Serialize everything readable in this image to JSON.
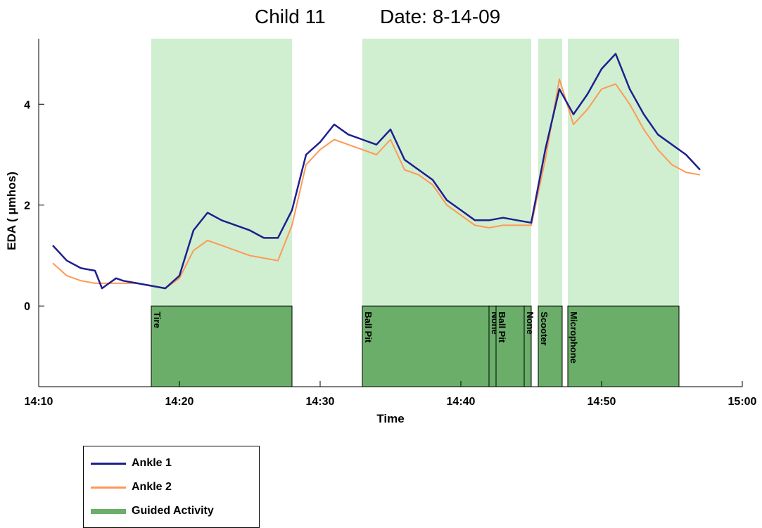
{
  "chart_data": {
    "type": "line",
    "title_left": "Child 11",
    "title_right": "Date: 8-14-09",
    "xlabel": "Time",
    "ylabel": "EDA ( μmhos)",
    "xlim": [
      "14:10",
      "15:00"
    ],
    "ylim": [
      -1.6,
      5.3
    ],
    "x_ticks": [
      "14:10",
      "14:20",
      "14:30",
      "14:40",
      "14:50",
      "15:00"
    ],
    "y_ticks": [
      0,
      2,
      4
    ],
    "legend_position": "below-left",
    "colors": {
      "ankle1": "#1f1f8f",
      "ankle2": "#ff9955",
      "shade": "#c8ecc8",
      "activity_fill": "#6aae6a"
    },
    "shaded_regions": [
      {
        "start": "14:18",
        "end": "14:28"
      },
      {
        "start": "14:33",
        "end": "14:45"
      },
      {
        "start": "14:45.5",
        "end": "14:47.2"
      },
      {
        "start": "14:47.6",
        "end": "14:55.5"
      }
    ],
    "activities": [
      {
        "label": "Tire",
        "start": "14:18",
        "end": "14:28"
      },
      {
        "label": "Ball Pit",
        "start": "14:33",
        "end": "14:42"
      },
      {
        "label": "None",
        "start": "14:42",
        "end": "14:42.5"
      },
      {
        "label": "Ball Pit",
        "start": "14:42.5",
        "end": "14:44.5"
      },
      {
        "label": "None",
        "start": "14:44.5",
        "end": "14:45"
      },
      {
        "label": "Scooter",
        "start": "14:45.5",
        "end": "14:47.2"
      },
      {
        "label": "Microphone",
        "start": "14:47.6",
        "end": "14:55.5"
      }
    ],
    "series": [
      {
        "name": "Ankle 1",
        "x": [
          "14:11",
          "14:12",
          "14:13",
          "14:14",
          "14:14.5",
          "14:15",
          "14:15.5",
          "14:16",
          "14:17",
          "14:18",
          "14:19",
          "14:20",
          "14:21",
          "14:22",
          "14:23",
          "14:24",
          "14:25",
          "14:26",
          "14:27",
          "14:28",
          "14:29",
          "14:30",
          "14:31",
          "14:32",
          "14:33",
          "14:34",
          "14:35",
          "14:36",
          "14:37",
          "14:38",
          "14:39",
          "14:40",
          "14:41",
          "14:42",
          "14:43",
          "14:44",
          "14:45",
          "14:46",
          "14:47",
          "14:48",
          "14:49",
          "14:50",
          "14:51",
          "14:52",
          "14:53",
          "14:54",
          "14:55",
          "14:56",
          "14:57"
        ],
        "y": [
          1.2,
          0.9,
          0.75,
          0.7,
          0.35,
          0.45,
          0.55,
          0.5,
          0.45,
          0.4,
          0.35,
          0.6,
          1.5,
          1.85,
          1.7,
          1.6,
          1.5,
          1.35,
          1.35,
          1.9,
          3.0,
          3.25,
          3.6,
          3.4,
          3.3,
          3.2,
          3.5,
          2.9,
          2.7,
          2.5,
          2.1,
          1.9,
          1.7,
          1.7,
          1.75,
          1.7,
          1.65,
          3.1,
          4.3,
          3.8,
          4.2,
          4.7,
          5.0,
          4.3,
          3.8,
          3.4,
          3.2,
          3.0,
          2.7
        ]
      },
      {
        "name": "Ankle 2",
        "x": [
          "14:11",
          "14:12",
          "14:13",
          "14:14",
          "14:15",
          "14:16",
          "14:17",
          "14:18",
          "14:19",
          "14:20",
          "14:21",
          "14:22",
          "14:23",
          "14:24",
          "14:25",
          "14:26",
          "14:27",
          "14:28",
          "14:29",
          "14:30",
          "14:31",
          "14:32",
          "14:33",
          "14:34",
          "14:35",
          "14:36",
          "14:37",
          "14:38",
          "14:39",
          "14:40",
          "14:41",
          "14:42",
          "14:43",
          "14:44",
          "14:45",
          "14:46",
          "14:47",
          "14:48",
          "14:49",
          "14:50",
          "14:51",
          "14:52",
          "14:53",
          "14:54",
          "14:55",
          "14:56",
          "14:57"
        ],
        "y": [
          0.85,
          0.6,
          0.5,
          0.45,
          0.45,
          0.45,
          0.45,
          0.4,
          0.35,
          0.55,
          1.1,
          1.3,
          1.2,
          1.1,
          1.0,
          0.95,
          0.9,
          1.6,
          2.8,
          3.1,
          3.3,
          3.2,
          3.1,
          3.0,
          3.3,
          2.7,
          2.6,
          2.4,
          2.0,
          1.8,
          1.6,
          1.55,
          1.6,
          1.6,
          1.6,
          2.9,
          4.5,
          3.6,
          3.9,
          4.3,
          4.4,
          4.0,
          3.5,
          3.1,
          2.8,
          2.65,
          2.6
        ]
      }
    ]
  },
  "legend": {
    "items": [
      {
        "label": "Ankle 1"
      },
      {
        "label": "Ankle 2"
      },
      {
        "label": "Guided Activity"
      }
    ]
  }
}
